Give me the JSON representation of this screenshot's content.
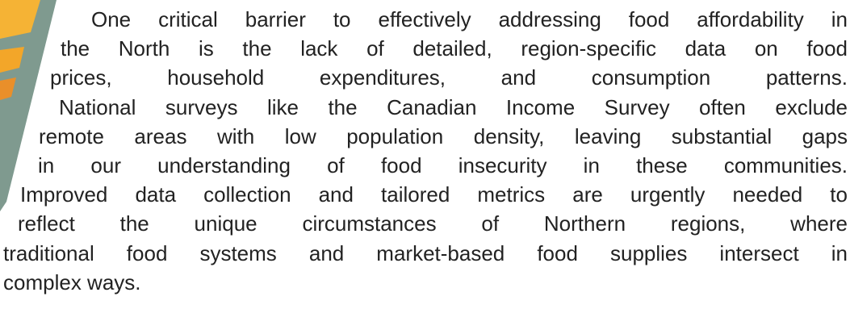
{
  "paragraph": {
    "lines": [
      "One critical barrier to effectively addressing food affordability in",
      "the North is the lack of detailed, region-specific data on food",
      "prices, household expenditures, and consumption patterns.",
      "National surveys like the Canadian Income Survey often exclude",
      "remote areas with low population density, leaving substantial gaps",
      "in our understanding of food insecurity in these communities.",
      "Improved data collection and tailored metrics are urgently needed to",
      "reflect the unique circumstances of Northern regions, where",
      "traditional food systems and market-based food supplies intersect in",
      "complex ways."
    ]
  }
}
